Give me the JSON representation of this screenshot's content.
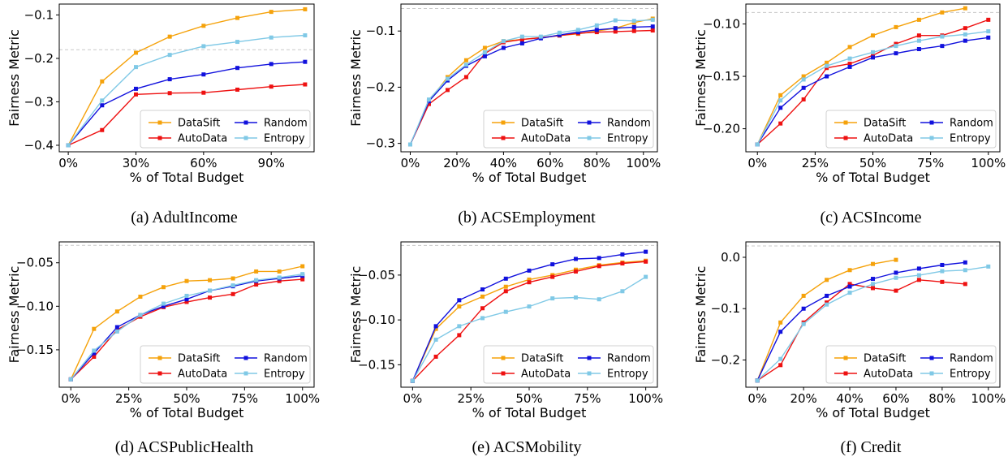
{
  "colors": {
    "DataSift": "#f5a20b",
    "AutoData": "#ee1111",
    "Random": "#1111dd",
    "Entropy": "#80c9e6",
    "reference_line": "#c8c8c8"
  },
  "chart_data": [
    {
      "type": "line",
      "caption": "(a) AdultIncome",
      "xlabel": "% of Total Budget",
      "ylabel": "Fairness Metric",
      "xlim": [
        -0.04,
        1.09
      ],
      "ylim": [
        -0.415,
        -0.075
      ],
      "xticks": [
        0,
        0.3,
        0.6,
        0.9
      ],
      "xtick_labels": [
        "0%",
        "30%",
        "60%",
        "90%"
      ],
      "yticks": [
        -0.4,
        -0.3,
        -0.2,
        -0.1
      ],
      "ytick_labels": [
        "−0.4",
        "−0.3",
        "−0.2",
        "−0.1"
      ],
      "reference_y": -0.18,
      "legend_position": "lower-right",
      "series": [
        {
          "name": "DataSift",
          "x": [
            0,
            0.15,
            0.3,
            0.45,
            0.6,
            0.75,
            0.9,
            1.05
          ],
          "y": [
            -0.4,
            -0.253,
            -0.187,
            -0.15,
            -0.125,
            -0.107,
            -0.093,
            -0.087
          ]
        },
        {
          "name": "AutoData",
          "x": [
            0,
            0.15,
            0.3,
            0.45,
            0.6,
            0.75,
            0.9,
            1.05
          ],
          "y": [
            -0.4,
            -0.365,
            -0.283,
            -0.28,
            -0.279,
            -0.272,
            -0.265,
            -0.26
          ]
        },
        {
          "name": "Random",
          "x": [
            0,
            0.15,
            0.3,
            0.45,
            0.6,
            0.75,
            0.9,
            1.05
          ],
          "y": [
            -0.4,
            -0.308,
            -0.27,
            -0.248,
            -0.237,
            -0.222,
            -0.213,
            -0.208
          ]
        },
        {
          "name": "Entropy",
          "x": [
            0,
            0.15,
            0.3,
            0.45,
            0.6,
            0.75,
            0.9,
            1.05
          ],
          "y": [
            -0.4,
            -0.297,
            -0.22,
            -0.192,
            -0.172,
            -0.162,
            -0.152,
            -0.147
          ]
        }
      ]
    },
    {
      "type": "line",
      "caption": "(b) ACSEmployment",
      "xlabel": "% of Total Budget",
      "ylabel": "Fairness Metric",
      "xlim": [
        -0.04,
        1.06
      ],
      "ylim": [
        -0.315,
        -0.052
      ],
      "xticks": [
        0,
        0.2,
        0.4,
        0.6,
        0.8,
        1.0
      ],
      "xtick_labels": [
        "0%",
        "20%",
        "40%",
        "60%",
        "80%",
        "100%"
      ],
      "yticks": [
        -0.3,
        -0.2,
        -0.1
      ],
      "ytick_labels": [
        "−0.3",
        "−0.2",
        "−0.1"
      ],
      "reference_y": -0.06,
      "legend_position": "lower-right",
      "series": [
        {
          "name": "DataSift",
          "x": [
            0,
            0.08,
            0.16,
            0.24,
            0.32,
            0.4,
            0.48,
            0.56,
            0.64,
            0.72,
            0.8,
            0.88,
            0.96,
            1.04
          ],
          "y": [
            -0.302,
            -0.225,
            -0.182,
            -0.152,
            -0.13,
            -0.118,
            -0.115,
            -0.112,
            -0.108,
            -0.105,
            -0.1,
            -0.095,
            -0.085,
            -0.078
          ]
        },
        {
          "name": "AutoData",
          "x": [
            0,
            0.08,
            0.16,
            0.24,
            0.32,
            0.4,
            0.48,
            0.56,
            0.64,
            0.72,
            0.8,
            0.88,
            0.96,
            1.04
          ],
          "y": [
            -0.302,
            -0.23,
            -0.205,
            -0.182,
            -0.14,
            -0.12,
            -0.115,
            -0.112,
            -0.108,
            -0.104,
            -0.102,
            -0.101,
            -0.1,
            -0.099
          ]
        },
        {
          "name": "Random",
          "x": [
            0,
            0.08,
            0.16,
            0.24,
            0.32,
            0.4,
            0.48,
            0.56,
            0.64,
            0.72,
            0.8,
            0.88,
            0.96,
            1.04
          ],
          "y": [
            -0.302,
            -0.225,
            -0.188,
            -0.162,
            -0.145,
            -0.13,
            -0.122,
            -0.113,
            -0.107,
            -0.102,
            -0.098,
            -0.095,
            -0.093,
            -0.092
          ]
        },
        {
          "name": "Entropy",
          "x": [
            0,
            0.08,
            0.16,
            0.24,
            0.32,
            0.4,
            0.48,
            0.56,
            0.64,
            0.72,
            0.8,
            0.88,
            0.96,
            1.04
          ],
          "y": [
            -0.302,
            -0.222,
            -0.185,
            -0.16,
            -0.138,
            -0.118,
            -0.11,
            -0.11,
            -0.103,
            -0.098,
            -0.09,
            -0.081,
            -0.082,
            -0.08
          ]
        }
      ]
    },
    {
      "type": "line",
      "caption": "(c) ACSIncome",
      "xlabel": "% of Total Budget",
      "ylabel": "Fairness Metric",
      "xlim": [
        -0.05,
        1.05
      ],
      "ylim": [
        -0.222,
        -0.081
      ],
      "xticks": [
        0,
        0.25,
        0.5,
        0.75,
        1.0
      ],
      "xtick_labels": [
        "0%",
        "25%",
        "50%",
        "75%",
        "100%"
      ],
      "yticks": [
        -0.2,
        -0.15,
        -0.1
      ],
      "ytick_labels": [
        "−0.20",
        "−0.15",
        "−0.10"
      ],
      "reference_y": -0.089,
      "legend_position": "lower-right",
      "series": [
        {
          "name": "DataSift",
          "x": [
            0,
            0.1,
            0.2,
            0.3,
            0.4,
            0.5,
            0.6,
            0.7,
            0.8,
            0.9
          ],
          "y": [
            -0.215,
            -0.168,
            -0.15,
            -0.137,
            -0.122,
            -0.111,
            -0.103,
            -0.096,
            -0.089,
            -0.085
          ]
        },
        {
          "name": "AutoData",
          "x": [
            0,
            0.1,
            0.2,
            0.3,
            0.4,
            0.5,
            0.6,
            0.7,
            0.8,
            0.9,
            1.0
          ],
          "y": [
            -0.215,
            -0.195,
            -0.172,
            -0.142,
            -0.138,
            -0.13,
            -0.119,
            -0.111,
            -0.111,
            -0.104,
            -0.096
          ]
        },
        {
          "name": "Random",
          "x": [
            0,
            0.1,
            0.2,
            0.3,
            0.4,
            0.5,
            0.6,
            0.7,
            0.8,
            0.9,
            1.0
          ],
          "y": [
            -0.215,
            -0.18,
            -0.161,
            -0.15,
            -0.141,
            -0.132,
            -0.128,
            -0.124,
            -0.121,
            -0.116,
            -0.113
          ]
        },
        {
          "name": "Entropy",
          "x": [
            0,
            0.1,
            0.2,
            0.3,
            0.4,
            0.5,
            0.6,
            0.7,
            0.8,
            0.9,
            1.0
          ],
          "y": [
            -0.215,
            -0.173,
            -0.153,
            -0.14,
            -0.133,
            -0.127,
            -0.121,
            -0.116,
            -0.112,
            -0.11,
            -0.107
          ]
        }
      ]
    },
    {
      "type": "line",
      "caption": "(d) ACSPublicHealth",
      "xlabel": "% of Total Budget",
      "ylabel": "Fairness Metric",
      "xlim": [
        -0.05,
        1.05
      ],
      "ylim": [
        -0.193,
        -0.026
      ],
      "xticks": [
        0,
        0.25,
        0.5,
        0.75,
        1.0
      ],
      "xtick_labels": [
        "0%",
        "25%",
        "50%",
        "75%",
        "100%"
      ],
      "yticks": [
        -0.15,
        -0.1,
        -0.05
      ],
      "ytick_labels": [
        "−0.15",
        "−0.10",
        "−0.05"
      ],
      "reference_y": -0.03,
      "legend_position": "lower-right",
      "series": [
        {
          "name": "DataSift",
          "x": [
            0,
            0.1,
            0.2,
            0.3,
            0.4,
            0.5,
            0.6,
            0.7,
            0.8,
            0.9,
            1.0
          ],
          "y": [
            -0.184,
            -0.126,
            -0.106,
            -0.089,
            -0.078,
            -0.071,
            -0.07,
            -0.068,
            -0.06,
            -0.06,
            -0.054
          ]
        },
        {
          "name": "AutoData",
          "x": [
            0,
            0.1,
            0.2,
            0.3,
            0.4,
            0.5,
            0.6,
            0.7,
            0.8,
            0.9,
            1.0
          ],
          "y": [
            -0.184,
            -0.158,
            -0.127,
            -0.112,
            -0.101,
            -0.095,
            -0.09,
            -0.086,
            -0.075,
            -0.071,
            -0.069
          ]
        },
        {
          "name": "Random",
          "x": [
            0,
            0.1,
            0.2,
            0.3,
            0.4,
            0.5,
            0.6,
            0.7,
            0.8,
            0.9,
            1.0
          ],
          "y": [
            -0.184,
            -0.154,
            -0.124,
            -0.11,
            -0.1,
            -0.092,
            -0.082,
            -0.077,
            -0.071,
            -0.068,
            -0.065
          ]
        },
        {
          "name": "Entropy",
          "x": [
            0,
            0.1,
            0.2,
            0.3,
            0.4,
            0.5,
            0.6,
            0.7,
            0.8,
            0.9,
            1.0
          ],
          "y": [
            -0.184,
            -0.151,
            -0.129,
            -0.11,
            -0.097,
            -0.088,
            -0.082,
            -0.076,
            -0.07,
            -0.067,
            -0.063
          ]
        }
      ]
    },
    {
      "type": "line",
      "caption": "(e) ACSMobility",
      "xlabel": "% of Total Budget",
      "ylabel": "Fairness Metric",
      "xlim": [
        -0.05,
        1.05
      ],
      "ylim": [
        -0.175,
        -0.013
      ],
      "xticks": [
        0,
        0.25,
        0.5,
        0.75,
        1.0
      ],
      "xtick_labels": [
        "0%",
        "25%",
        "50%",
        "75%",
        "100%"
      ],
      "yticks": [
        -0.15,
        -0.1,
        -0.05
      ],
      "ytick_labels": [
        "−0.15",
        "−0.10",
        "−0.05"
      ],
      "reference_y": -0.017,
      "legend_position": "lower-right",
      "series": [
        {
          "name": "DataSift",
          "x": [
            0,
            0.1,
            0.2,
            0.3,
            0.4,
            0.5,
            0.6,
            0.7,
            0.8,
            0.9,
            1.0
          ],
          "y": [
            -0.168,
            -0.11,
            -0.085,
            -0.074,
            -0.063,
            -0.055,
            -0.05,
            -0.044,
            -0.039,
            -0.036,
            -0.034
          ]
        },
        {
          "name": "AutoData",
          "x": [
            0,
            0.1,
            0.2,
            0.3,
            0.4,
            0.5,
            0.6,
            0.7,
            0.8,
            0.9,
            1.0
          ],
          "y": [
            -0.168,
            -0.141,
            -0.117,
            -0.087,
            -0.068,
            -0.058,
            -0.052,
            -0.046,
            -0.04,
            -0.037,
            -0.035
          ]
        },
        {
          "name": "Random",
          "x": [
            0,
            0.1,
            0.2,
            0.3,
            0.4,
            0.5,
            0.6,
            0.7,
            0.8,
            0.9,
            1.0
          ],
          "y": [
            -0.168,
            -0.107,
            -0.078,
            -0.066,
            -0.054,
            -0.045,
            -0.038,
            -0.032,
            -0.031,
            -0.027,
            -0.024
          ]
        },
        {
          "name": "Entropy",
          "x": [
            0,
            0.1,
            0.2,
            0.3,
            0.4,
            0.5,
            0.6,
            0.7,
            0.8,
            0.9,
            1.0
          ],
          "y": [
            -0.168,
            -0.122,
            -0.107,
            -0.098,
            -0.091,
            -0.085,
            -0.076,
            -0.075,
            -0.077,
            -0.068,
            -0.052
          ]
        }
      ]
    },
    {
      "type": "line",
      "caption": "(f) Credit",
      "xlabel": "% of Total Budget",
      "ylabel": "Fairness Metric",
      "xlim": [
        -0.05,
        1.05
      ],
      "ylim": [
        -0.253,
        0.03
      ],
      "xticks": [
        0,
        0.2,
        0.4,
        0.6,
        0.8,
        1.0
      ],
      "xtick_labels": [
        "0%",
        "20%",
        "40%",
        "60%",
        "80%",
        "100%"
      ],
      "yticks": [
        -0.2,
        -0.1,
        0.0
      ],
      "ytick_labels": [
        "−0.2",
        "−0.1",
        "0.0"
      ],
      "reference_y": 0.022,
      "legend_position": "lower-right",
      "series": [
        {
          "name": "DataSift",
          "x": [
            0,
            0.1,
            0.2,
            0.3,
            0.4,
            0.5,
            0.6
          ],
          "y": [
            -0.24,
            -0.127,
            -0.075,
            -0.044,
            -0.025,
            -0.013,
            -0.005
          ]
        },
        {
          "name": "AutoData",
          "x": [
            0,
            0.1,
            0.2,
            0.3,
            0.4,
            0.5,
            0.6,
            0.7,
            0.8,
            0.9
          ],
          "y": [
            -0.24,
            -0.21,
            -0.127,
            -0.088,
            -0.052,
            -0.06,
            -0.065,
            -0.044,
            -0.048,
            -0.052
          ]
        },
        {
          "name": "Random",
          "x": [
            0,
            0.1,
            0.2,
            0.3,
            0.4,
            0.5,
            0.6,
            0.7,
            0.8,
            0.9
          ],
          "y": [
            -0.24,
            -0.145,
            -0.1,
            -0.075,
            -0.057,
            -0.042,
            -0.03,
            -0.022,
            -0.015,
            -0.01
          ]
        },
        {
          "name": "Entropy",
          "x": [
            0,
            0.1,
            0.2,
            0.3,
            0.4,
            0.5,
            0.6,
            0.7,
            0.8,
            0.9,
            1.0
          ],
          "y": [
            -0.24,
            -0.198,
            -0.13,
            -0.092,
            -0.069,
            -0.052,
            -0.04,
            -0.035,
            -0.027,
            -0.025,
            -0.018
          ]
        }
      ]
    }
  ]
}
